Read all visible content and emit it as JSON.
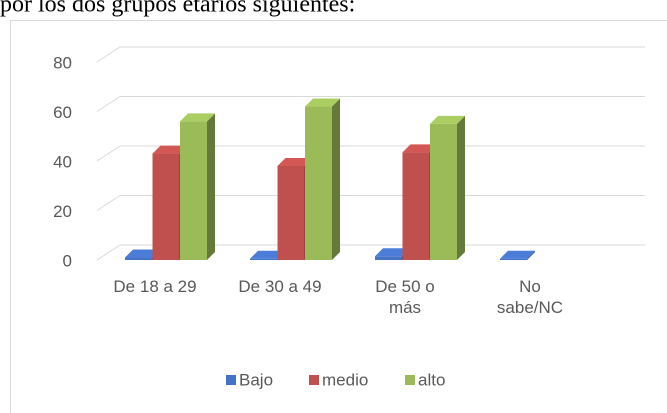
{
  "chart_data": {
    "type": "bar3d",
    "caption": "por los dos grupos etarios siguientes:",
    "categories": [
      "De 18 a 29",
      "De 30 a 49",
      "De 50 o\nmás",
      "No\nsabe/NC"
    ],
    "series": [
      {
        "name": "Bajo",
        "color": "#4472c4",
        "values": [
          1,
          0.5,
          1.5,
          0.5
        ]
      },
      {
        "name": "medio",
        "color": "#c0504d",
        "values": [
          43,
          38,
          43.5,
          null
        ]
      },
      {
        "name": "alto",
        "color": "#9bbb59",
        "values": [
          56,
          62,
          55,
          null
        ]
      }
    ],
    "ylim": [
      0,
      80
    ],
    "yticks": [
      0,
      20,
      40,
      60,
      80
    ],
    "grid": true,
    "legend": "bottom"
  }
}
